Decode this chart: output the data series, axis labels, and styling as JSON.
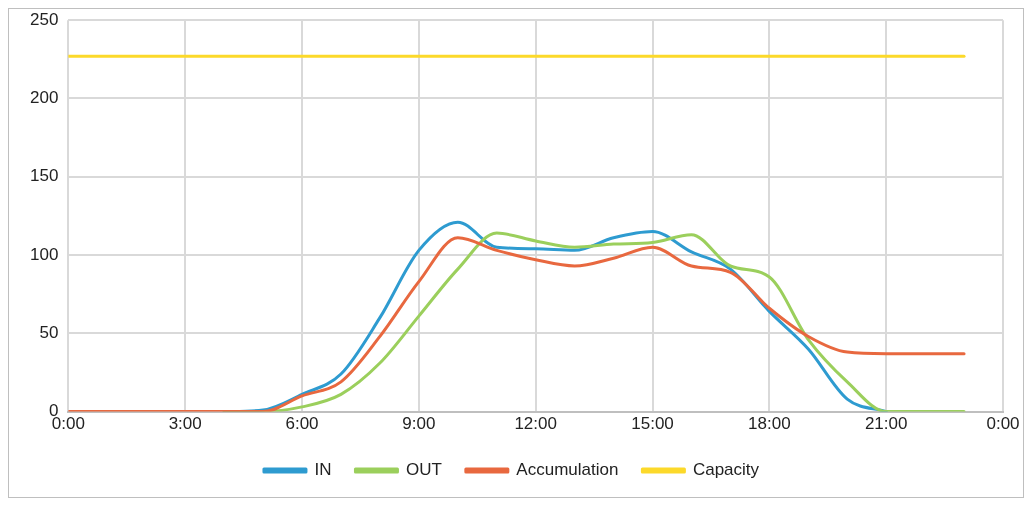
{
  "chart_data": {
    "type": "line",
    "x": [
      0,
      1,
      2,
      3,
      4,
      5,
      6,
      7,
      8,
      9,
      10,
      11,
      12,
      13,
      14,
      15,
      16,
      17,
      18,
      19,
      20,
      21,
      22,
      23
    ],
    "series": [
      {
        "name": "IN",
        "color": "#2e9bd0",
        "values": [
          null,
          null,
          null,
          null,
          0,
          1,
          11,
          24,
          60,
          103,
          121,
          105,
          104,
          103,
          111,
          115,
          102,
          91,
          64,
          40,
          8,
          0,
          null,
          null
        ]
      },
      {
        "name": "OUT",
        "color": "#9bcf5c",
        "values": [
          null,
          null,
          null,
          null,
          0,
          0,
          3,
          11,
          31,
          61,
          91,
          114,
          109,
          105,
          107,
          108,
          113,
          93,
          86,
          46,
          19,
          0,
          0,
          0
        ]
      },
      {
        "name": "Accumulation",
        "color": "#e8683f",
        "values": [
          0,
          0,
          0,
          0,
          0,
          0,
          10,
          19,
          48,
          83,
          111,
          103,
          97,
          93,
          98,
          105,
          93,
          89,
          66,
          48,
          38,
          37,
          37,
          37
        ]
      },
      {
        "name": "Capacity",
        "color": "#fcd92a",
        "values": [
          227,
          227,
          227,
          227,
          227,
          227,
          227,
          227,
          227,
          227,
          227,
          227,
          227,
          227,
          227,
          227,
          227,
          227,
          227,
          227,
          227,
          227,
          227,
          227
        ]
      }
    ],
    "xlim": [
      0,
      24
    ],
    "xticks": [
      {
        "value": 0,
        "label": "0:00"
      },
      {
        "value": 3,
        "label": "3:00"
      },
      {
        "value": 6,
        "label": "6:00"
      },
      {
        "value": 9,
        "label": "9:00"
      },
      {
        "value": 12,
        "label": "12:00"
      },
      {
        "value": 15,
        "label": "15:00"
      },
      {
        "value": 18,
        "label": "18:00"
      },
      {
        "value": 21,
        "label": "21:00"
      },
      {
        "value": 24,
        "label": "0:00"
      }
    ],
    "ylim": [
      0,
      250
    ],
    "yticks": [
      0,
      50,
      100,
      150,
      200,
      250
    ],
    "grid": true,
    "legend": "bottom",
    "marker": "none",
    "line_style": "solid"
  }
}
